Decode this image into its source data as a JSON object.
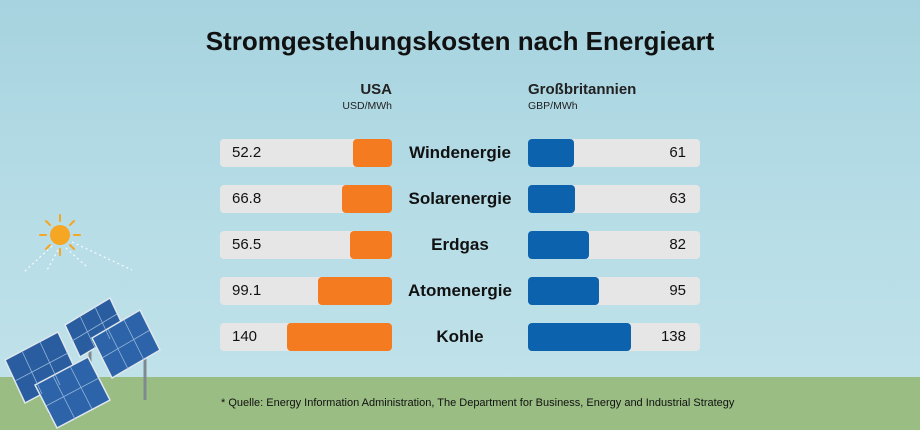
{
  "chart_data": {
    "type": "bar",
    "title": "Stromgestehungskosten nach Energieart",
    "categories": [
      "Windenergie",
      "Solarenergie",
      "Erdgas",
      "Atomenergie",
      "Kohle"
    ],
    "series": [
      {
        "name": "USA",
        "unit": "USD/MWh",
        "values": [
          52.2,
          66.8,
          56.5,
          99.1,
          140
        ],
        "labels": [
          "52.2",
          "66.8",
          "56.5",
          "99.1",
          "140"
        ],
        "color": "#f47b20"
      },
      {
        "name": "Großbritannien",
        "unit": "GBP/MWh",
        "values": [
          61,
          63,
          82,
          95,
          138
        ],
        "labels": [
          "61",
          "63",
          "82",
          "95",
          "138"
        ],
        "color": "#0d62ad"
      }
    ],
    "xlim": [
      0,
      230
    ]
  },
  "footnote": "* Quelle: Energy Information Administration, The Department for Business, Energy and Industrial Strategy",
  "colors": {
    "usa": "#f47b20",
    "uk": "#0d62ad",
    "track": "#e6e6e6",
    "sky": "#b5dce6",
    "ground": "#9abd84"
  }
}
